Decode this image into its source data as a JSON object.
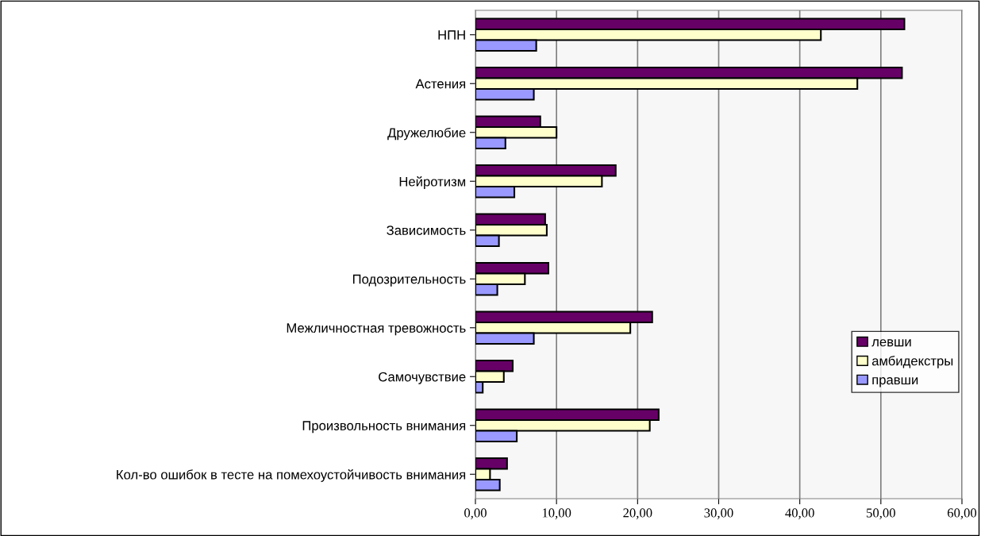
{
  "chart_data": {
    "type": "bar",
    "orientation": "horizontal",
    "categories": [
      "НПН",
      "Астения",
      "Дружелюбие",
      "Нейротизм",
      "Зависимость",
      "Подозрительность",
      "Межличностная тревожность",
      "Самочувствие",
      "Произвольность внимания",
      "Кол-во ошибок в тесте на помехоустойчивость внимания"
    ],
    "series": [
      {
        "name": "левши",
        "color": "#660066",
        "values": [
          52.9,
          52.6,
          8.0,
          17.3,
          8.6,
          9.0,
          21.8,
          4.6,
          22.6,
          3.9
        ]
      },
      {
        "name": "амбидекстры",
        "color": "#ffffcc",
        "values": [
          42.6,
          47.1,
          10.0,
          15.6,
          8.8,
          6.1,
          19.1,
          3.5,
          21.5,
          1.8
        ]
      },
      {
        "name": "правши",
        "color": "#9999ff",
        "values": [
          7.5,
          7.2,
          3.7,
          4.8,
          2.9,
          2.7,
          7.2,
          0.9,
          5.1,
          3.0
        ]
      }
    ],
    "xlim": [
      0,
      60
    ],
    "xticks": [
      {
        "value": 0,
        "label": "0,00"
      },
      {
        "value": 10,
        "label": "10,00"
      },
      {
        "value": 20,
        "label": "20,00"
      },
      {
        "value": 30,
        "label": "30,00"
      },
      {
        "value": 40,
        "label": "40,00"
      },
      {
        "value": 50,
        "label": "50,00"
      },
      {
        "value": 60,
        "label": "60,00"
      }
    ],
    "grid": "x",
    "legend": "right"
  }
}
